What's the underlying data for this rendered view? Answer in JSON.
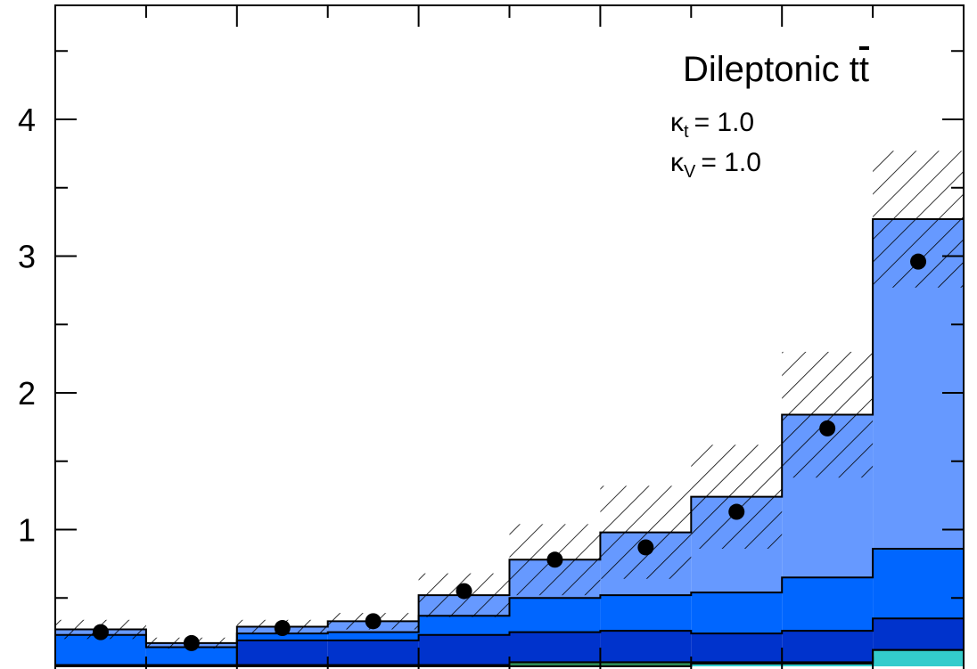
{
  "chart_data": {
    "type": "bar",
    "subtype": "stacked step histogram with data points and hatched uncertainty band",
    "annotations": {
      "process": "Dileptonic t",
      "process_bar": "t",
      "kappa_t_symbol": "κ",
      "kappa_t_sub": "t",
      "kappa_t_value": "= 1.0",
      "kappa_v_symbol": "κ",
      "kappa_v_sub": "V",
      "kappa_v_value": "= 1.0"
    },
    "xlabel": "",
    "ylabel": "",
    "bins": 10,
    "ylim": [
      0,
      4.8
    ],
    "yticks": [
      1,
      2,
      3,
      4
    ],
    "ytick_labels": [
      "1",
      "2",
      "3",
      "4"
    ],
    "grid": false,
    "stack": [
      {
        "color": "#33cccc",
        "values": [
          0.0,
          0.0,
          0.0,
          0.0,
          0.0,
          0.0,
          0.0,
          0.02,
          0.02,
          0.12
        ]
      },
      {
        "color": "#2e8b57",
        "values": [
          0.01,
          0.01,
          0.01,
          0.01,
          0.01,
          0.03,
          0.03,
          0.01,
          0.01,
          0.0
        ]
      },
      {
        "color": "#0033cc",
        "values": [
          0.0,
          0.0,
          0.18,
          0.18,
          0.22,
          0.22,
          0.23,
          0.21,
          0.23,
          0.23
        ]
      },
      {
        "color": "#0066ff",
        "values": [
          0.22,
          0.13,
          0.05,
          0.06,
          0.14,
          0.25,
          0.26,
          0.3,
          0.39,
          0.51
        ]
      },
      {
        "color": "#6699ff",
        "values": [
          0.04,
          0.03,
          0.05,
          0.08,
          0.15,
          0.28,
          0.46,
          0.7,
          1.19,
          2.41
        ]
      }
    ],
    "totals": [
      0.27,
      0.17,
      0.29,
      0.33,
      0.52,
      0.78,
      0.98,
      1.24,
      1.84,
      3.27
    ],
    "uncertainty": [
      0.07,
      0.04,
      0.05,
      0.06,
      0.16,
      0.26,
      0.34,
      0.38,
      0.46,
      0.5
    ],
    "points": [
      0.25,
      0.17,
      0.28,
      0.33,
      0.55,
      0.78,
      0.87,
      1.13,
      1.74,
      2.96
    ],
    "colors": {
      "band_outline": "#000000",
      "points": "#000000",
      "hatch": "#000000"
    }
  }
}
